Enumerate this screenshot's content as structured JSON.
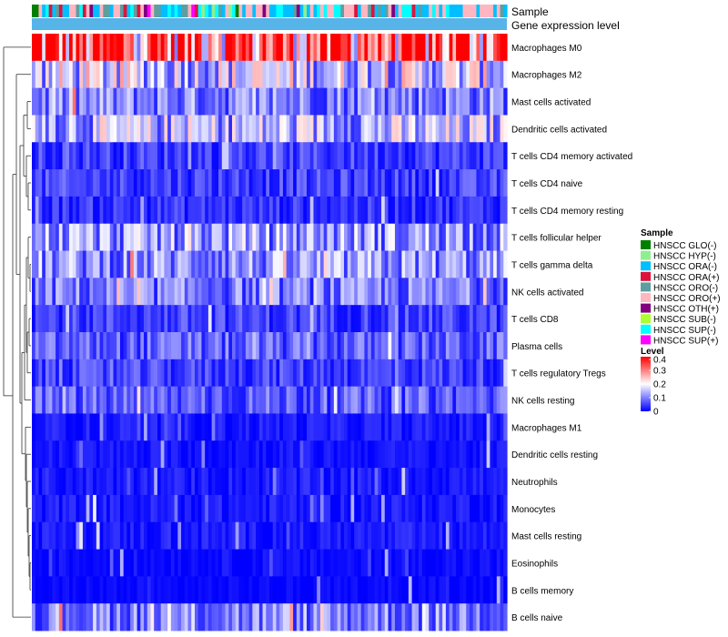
{
  "chart_data": {
    "type": "heatmap",
    "annotation_tracks": [
      "Sample",
      "Gene expression level"
    ],
    "rows": [
      "Macrophages M0",
      "Macrophages M2",
      "Mast cells activated",
      "Dendritic cells activated",
      "T cells CD4 memory activated",
      "T cells CD4 naive",
      "T cells CD4 memory resting",
      "T cells follicular helper",
      "T cells gamma delta",
      "NK cells activated",
      "T cells CD8",
      "Plasma cells",
      "T cells regulatory  Tregs",
      "NK cells resting",
      "Macrophages M1",
      "Dendritic cells resting",
      "Neutrophils",
      "Monocytes",
      "Mast cells resting",
      "Eosinophils",
      "B cells memory",
      "B cells naive"
    ],
    "row_mean_levels": [
      0.34,
      0.16,
      0.1,
      0.14,
      0.05,
      0.05,
      0.04,
      0.12,
      0.11,
      0.09,
      0.05,
      0.07,
      0.05,
      0.07,
      0.02,
      0.015,
      0.02,
      0.02,
      0.02,
      0.01,
      0.005,
      0.1
    ],
    "n_samples": 140,
    "sample_legend": {
      "title": "Sample",
      "items": [
        {
          "label": "HNSCC GLO(-)",
          "color": "#008000"
        },
        {
          "label": "HNSCC HYP(-)",
          "color": "#90EE90"
        },
        {
          "label": "HNSCC ORA(-)",
          "color": "#00BFFF"
        },
        {
          "label": "HNSCC ORA(+)",
          "color": "#DC143C"
        },
        {
          "label": "HNSCC ORO(-)",
          "color": "#5F9EA0"
        },
        {
          "label": "HNSCC ORO(+)",
          "color": "#FFB6C1"
        },
        {
          "label": "HNSCC OTH(+)",
          "color": "#800080"
        },
        {
          "label": "HNSCC SUB(-)",
          "color": "#ADFF2F"
        },
        {
          "label": "HNSCC SUP(-)",
          "color": "#00FFFF"
        },
        {
          "label": "HNSCC SUP(+)",
          "color": "#FF00FF"
        }
      ]
    },
    "level_legend": {
      "title": "Level",
      "ticks": [
        "0.4",
        "0.3",
        "0.2",
        "0.1",
        "0"
      ],
      "range": [
        0,
        0.4
      ],
      "colors": {
        "low": "#0000FF",
        "mid": "#FFFFFF",
        "high": "#FF0000"
      }
    },
    "expression_track_color": "#56B4E9"
  }
}
